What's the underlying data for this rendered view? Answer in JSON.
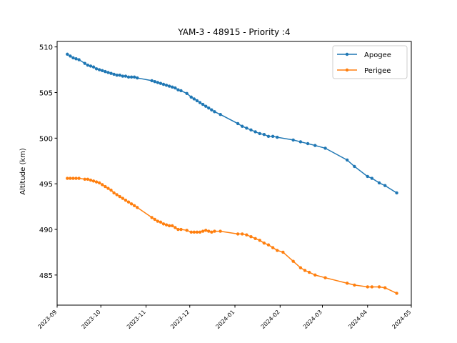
{
  "chart_data": {
    "type": "line",
    "title": "YAM-3 - 48915 - Priority :4",
    "xlabel": "",
    "ylabel": "Altitude (km)",
    "x_axis": "date",
    "xlim": [
      "2023-09-01",
      "2024-05-01"
    ],
    "ylim": [
      481.7,
      510.6
    ],
    "yticks": [
      485,
      490,
      495,
      500,
      505,
      510
    ],
    "xticks": [
      "2023-09",
      "2023-10",
      "2023-11",
      "2023-12",
      "2024-01",
      "2024-02",
      "2024-03",
      "2024-04",
      "2024-05"
    ],
    "grid": false,
    "legend_position": "upper-right",
    "series": [
      {
        "name": "Apogee",
        "color": "#1f77b4",
        "marker": "circle",
        "points": [
          [
            "2023-09-08",
            509.2
          ],
          [
            "2023-09-10",
            509.0
          ],
          [
            "2023-09-12",
            508.8
          ],
          [
            "2023-09-14",
            508.7
          ],
          [
            "2023-09-16",
            508.6
          ],
          [
            "2023-09-20",
            508.2
          ],
          [
            "2023-09-22",
            508.0
          ],
          [
            "2023-09-24",
            507.9
          ],
          [
            "2023-09-26",
            507.8
          ],
          [
            "2023-09-28",
            507.6
          ],
          [
            "2023-09-30",
            507.5
          ],
          [
            "2023-10-02",
            507.4
          ],
          [
            "2023-10-04",
            507.3
          ],
          [
            "2023-10-06",
            507.2
          ],
          [
            "2023-10-08",
            507.1
          ],
          [
            "2023-10-10",
            507.0
          ],
          [
            "2023-10-12",
            506.9
          ],
          [
            "2023-10-14",
            506.9
          ],
          [
            "2023-10-16",
            506.8
          ],
          [
            "2023-10-18",
            506.8
          ],
          [
            "2023-10-20",
            506.7
          ],
          [
            "2023-10-22",
            506.7
          ],
          [
            "2023-10-24",
            506.7
          ],
          [
            "2023-10-26",
            506.6
          ],
          [
            "2023-11-05",
            506.3
          ],
          [
            "2023-11-07",
            506.2
          ],
          [
            "2023-11-09",
            506.1
          ],
          [
            "2023-11-11",
            506.0
          ],
          [
            "2023-11-13",
            505.9
          ],
          [
            "2023-11-15",
            505.8
          ],
          [
            "2023-11-17",
            505.7
          ],
          [
            "2023-11-19",
            505.6
          ],
          [
            "2023-11-21",
            505.5
          ],
          [
            "2023-11-23",
            505.3
          ],
          [
            "2023-11-25",
            505.2
          ],
          [
            "2023-11-29",
            504.9
          ],
          [
            "2023-12-02",
            504.5
          ],
          [
            "2023-12-04",
            504.3
          ],
          [
            "2023-12-06",
            504.1
          ],
          [
            "2023-12-08",
            503.9
          ],
          [
            "2023-12-10",
            503.7
          ],
          [
            "2023-12-12",
            503.5
          ],
          [
            "2023-12-14",
            503.3
          ],
          [
            "2023-12-16",
            503.1
          ],
          [
            "2023-12-18",
            502.9
          ],
          [
            "2023-12-22",
            502.6
          ],
          [
            "2024-01-03",
            501.6
          ],
          [
            "2024-01-06",
            501.3
          ],
          [
            "2024-01-09",
            501.1
          ],
          [
            "2024-01-12",
            500.9
          ],
          [
            "2024-01-15",
            500.7
          ],
          [
            "2024-01-18",
            500.5
          ],
          [
            "2024-01-21",
            500.4
          ],
          [
            "2024-01-24",
            500.2
          ],
          [
            "2024-01-27",
            500.2
          ],
          [
            "2024-01-30",
            500.1
          ],
          [
            "2024-02-10",
            499.8
          ],
          [
            "2024-02-15",
            499.6
          ],
          [
            "2024-02-20",
            499.4
          ],
          [
            "2024-02-25",
            499.2
          ],
          [
            "2024-03-03",
            498.9
          ],
          [
            "2024-03-18",
            497.6
          ],
          [
            "2024-03-23",
            496.9
          ],
          [
            "2024-04-01",
            495.8
          ],
          [
            "2024-04-04",
            495.6
          ],
          [
            "2024-04-09",
            495.1
          ],
          [
            "2024-04-13",
            494.8
          ],
          [
            "2024-04-21",
            494.0
          ]
        ]
      },
      {
        "name": "Perigee",
        "color": "#ff7f0e",
        "marker": "circle",
        "points": [
          [
            "2023-09-08",
            495.6
          ],
          [
            "2023-09-10",
            495.6
          ],
          [
            "2023-09-12",
            495.6
          ],
          [
            "2023-09-14",
            495.6
          ],
          [
            "2023-09-16",
            495.6
          ],
          [
            "2023-09-20",
            495.5
          ],
          [
            "2023-09-22",
            495.5
          ],
          [
            "2023-09-24",
            495.4
          ],
          [
            "2023-09-26",
            495.3
          ],
          [
            "2023-09-28",
            495.2
          ],
          [
            "2023-09-30",
            495.1
          ],
          [
            "2023-10-02",
            494.9
          ],
          [
            "2023-10-04",
            494.7
          ],
          [
            "2023-10-06",
            494.5
          ],
          [
            "2023-10-08",
            494.3
          ],
          [
            "2023-10-10",
            494.0
          ],
          [
            "2023-10-12",
            493.8
          ],
          [
            "2023-10-14",
            493.6
          ],
          [
            "2023-10-16",
            493.4
          ],
          [
            "2023-10-18",
            493.2
          ],
          [
            "2023-10-20",
            493.0
          ],
          [
            "2023-10-22",
            492.8
          ],
          [
            "2023-10-24",
            492.6
          ],
          [
            "2023-10-26",
            492.4
          ],
          [
            "2023-11-05",
            491.3
          ],
          [
            "2023-11-07",
            491.1
          ],
          [
            "2023-11-09",
            490.9
          ],
          [
            "2023-11-11",
            490.8
          ],
          [
            "2023-11-13",
            490.6
          ],
          [
            "2023-11-15",
            490.5
          ],
          [
            "2023-11-17",
            490.4
          ],
          [
            "2023-11-19",
            490.4
          ],
          [
            "2023-11-21",
            490.2
          ],
          [
            "2023-11-23",
            490.0
          ],
          [
            "2023-11-25",
            490.0
          ],
          [
            "2023-11-29",
            489.9
          ],
          [
            "2023-12-02",
            489.7
          ],
          [
            "2023-12-04",
            489.7
          ],
          [
            "2023-12-06",
            489.7
          ],
          [
            "2023-12-08",
            489.7
          ],
          [
            "2023-12-10",
            489.8
          ],
          [
            "2023-12-12",
            489.9
          ],
          [
            "2023-12-14",
            489.8
          ],
          [
            "2023-12-16",
            489.7
          ],
          [
            "2023-12-18",
            489.8
          ],
          [
            "2023-12-22",
            489.8
          ],
          [
            "2024-01-03",
            489.5
          ],
          [
            "2024-01-06",
            489.5
          ],
          [
            "2024-01-09",
            489.4
          ],
          [
            "2024-01-12",
            489.2
          ],
          [
            "2024-01-15",
            489.0
          ],
          [
            "2024-01-18",
            488.8
          ],
          [
            "2024-01-21",
            488.5
          ],
          [
            "2024-01-24",
            488.3
          ],
          [
            "2024-01-27",
            488.0
          ],
          [
            "2024-01-30",
            487.7
          ],
          [
            "2024-02-03",
            487.5
          ],
          [
            "2024-02-10",
            486.5
          ],
          [
            "2024-02-15",
            485.8
          ],
          [
            "2024-02-18",
            485.5
          ],
          [
            "2024-02-21",
            485.3
          ],
          [
            "2024-02-25",
            485.0
          ],
          [
            "2024-03-03",
            484.7
          ],
          [
            "2024-03-18",
            484.1
          ],
          [
            "2024-03-23",
            483.9
          ],
          [
            "2024-04-01",
            483.7
          ],
          [
            "2024-04-04",
            483.7
          ],
          [
            "2024-04-09",
            483.7
          ],
          [
            "2024-04-13",
            483.6
          ],
          [
            "2024-04-21",
            483.0
          ]
        ]
      }
    ]
  }
}
